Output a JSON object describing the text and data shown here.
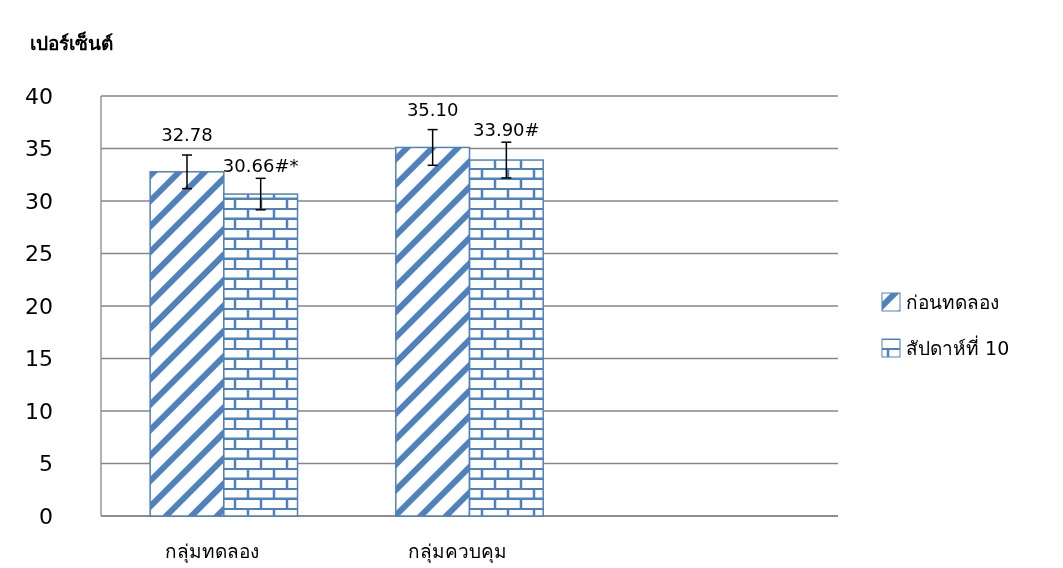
{
  "chart_data": {
    "type": "bar",
    "ylabel": "เปอร์เซ็นต์",
    "categories": [
      "กลุ่มทดลอง",
      "กลุ่มควบคุม",
      null
    ],
    "series": [
      {
        "name": "ก่อนทดลอง",
        "color": "#4f81bd",
        "values": [
          32.78,
          35.1,
          null
        ],
        "errors": [
          1.6,
          1.7,
          null
        ],
        "value_labels": [
          "32.78",
          "35.10",
          null
        ]
      },
      {
        "name": "สัปดาห์ที่ 10",
        "color": "#4f81bd",
        "values": [
          30.66,
          33.9,
          null
        ],
        "errors": [
          1.5,
          1.7,
          null
        ],
        "value_labels": [
          "30.66#*",
          "33.90#",
          null
        ]
      }
    ],
    "ylim": [
      0,
      40
    ],
    "yticks": [
      0,
      5,
      10,
      15,
      20,
      25,
      30,
      35,
      40
    ],
    "grid": "y",
    "legend": "right"
  }
}
